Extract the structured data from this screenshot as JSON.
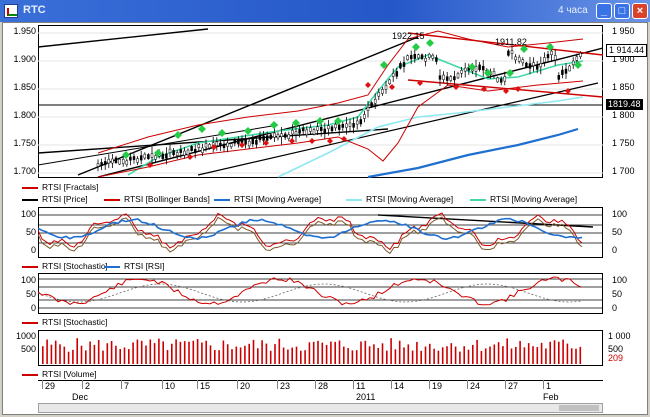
{
  "window": {
    "title": "RTC",
    "timeframe": "4 часа"
  },
  "price_pane": {
    "y_labels": [
      "1 950",
      "1 900",
      "1 850",
      "1 800",
      "1 750",
      "1 700"
    ],
    "left_y_labels": [
      "1.950",
      "1.900",
      "1.850",
      "1.800",
      "1.750",
      "1.700"
    ],
    "current_price": "1 914.44",
    "level_price": "1819.48",
    "annotations": [
      "1922.15",
      "1911.82"
    ],
    "legend": [
      {
        "label": "RTSI [Fractals]",
        "color": "#cc0000"
      },
      {
        "label": "RTSI [Price]",
        "color": "#000000"
      },
      {
        "label": "RTSI [Bollinger Bands]",
        "color": "#cc0000"
      },
      {
        "label": "RTSI [Moving Average]",
        "color": "#1f6fd0"
      },
      {
        "label": "RTSI [Moving Average]",
        "color": "#8fe8f0"
      },
      {
        "label": "RTSI [Moving Average]",
        "color": "#40d8a8"
      }
    ]
  },
  "osc1_pane": {
    "y_labels": [
      "100",
      "50",
      "0"
    ],
    "left_y_labels": [
      "100",
      "50",
      "0"
    ],
    "legend": [
      {
        "label": "RTSI [Stochastic]",
        "color": "#cc0000"
      },
      {
        "label": "RTSI [RSI]",
        "color": "#1f6fd0"
      }
    ]
  },
  "osc2_pane": {
    "y_labels": [
      "100",
      "50",
      "0"
    ],
    "left_y_labels": [
      "100",
      "50",
      "0"
    ],
    "legend": [
      {
        "label": "RTSI [Stochastic]",
        "color": "#cc0000"
      }
    ]
  },
  "volume_pane": {
    "y_labels": [
      "1 000",
      "500",
      "209"
    ],
    "left_y_labels": [
      "1000",
      "500",
      "0"
    ],
    "legend": [
      {
        "label": "RTSI [Volume]",
        "color": "#cc0000"
      }
    ]
  },
  "x_axis": {
    "day_labels": [
      "29",
      "2",
      "7",
      "10",
      "15",
      "20",
      "23",
      "28",
      "11",
      "14",
      "19",
      "24",
      "27",
      "1"
    ],
    "month_labels": [
      "Dec",
      "2011",
      "Feb"
    ]
  },
  "colors": {
    "up_candle": "#000000",
    "fractal_up": "#22cc44",
    "fractal_down": "#dd1111",
    "bollinger": "#cc0000",
    "ma_slow": "#1f6fd0",
    "ma_mid": "#8fe8f0",
    "ma_fast": "#40d8a8"
  }
}
